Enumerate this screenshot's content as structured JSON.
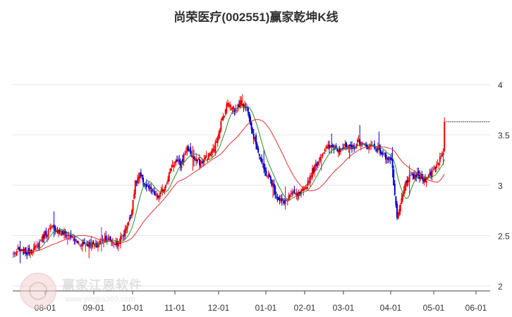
{
  "chart_data": {
    "type": "candlestick",
    "title": "尚荣医疗(002551)赢家乾坤K线",
    "x_ticks": [
      "08-01",
      "09-01",
      "10-01",
      "11-01",
      "12-01",
      "01-01",
      "02-01",
      "03-01",
      "04-01",
      "05-01",
      "06-01"
    ],
    "y_ticks": [
      "2",
      "2.5",
      "3",
      "3.5",
      "4"
    ],
    "ylim": [
      2.0,
      4.2
    ],
    "grid": true,
    "last_close_price": 3.63,
    "colors": {
      "up": "#ee0000",
      "down": "#0000cc",
      "neutral": "#8833aa",
      "ma_short": "#2e8b2e",
      "ma_long": "#e03030",
      "dashline": "#333333"
    },
    "anchors": [
      [
        0,
        2.32
      ],
      [
        4,
        2.35
      ],
      [
        12,
        2.33
      ],
      [
        20,
        2.38
      ],
      [
        28,
        2.52
      ],
      [
        35,
        2.58
      ],
      [
        43,
        2.53
      ],
      [
        50,
        2.5
      ],
      [
        58,
        2.42
      ],
      [
        66,
        2.42
      ],
      [
        74,
        2.4
      ],
      [
        80,
        2.48
      ],
      [
        86,
        2.45
      ],
      [
        92,
        2.42
      ],
      [
        98,
        2.52
      ],
      [
        104,
        2.7
      ],
      [
        108,
        3.02
      ],
      [
        112,
        3.1
      ],
      [
        117,
        3.0
      ],
      [
        122,
        2.95
      ],
      [
        128,
        2.88
      ],
      [
        134,
        2.98
      ],
      [
        140,
        3.18
      ],
      [
        144,
        3.24
      ],
      [
        148,
        3.2
      ],
      [
        154,
        3.38
      ],
      [
        160,
        3.26
      ],
      [
        166,
        3.22
      ],
      [
        172,
        3.28
      ],
      [
        178,
        3.36
      ],
      [
        184,
        3.62
      ],
      [
        190,
        3.82
      ],
      [
        196,
        3.74
      ],
      [
        202,
        3.82
      ],
      [
        208,
        3.75
      ],
      [
        212,
        3.52
      ],
      [
        216,
        3.38
      ],
      [
        222,
        3.15
      ],
      [
        228,
        3.05
      ],
      [
        234,
        2.88
      ],
      [
        240,
        2.82
      ],
      [
        246,
        2.92
      ],
      [
        252,
        2.9
      ],
      [
        258,
        2.95
      ],
      [
        264,
        3.12
      ],
      [
        270,
        3.24
      ],
      [
        276,
        3.36
      ],
      [
        282,
        3.38
      ],
      [
        288,
        3.36
      ],
      [
        294,
        3.38
      ],
      [
        300,
        3.36
      ],
      [
        306,
        3.44
      ],
      [
        312,
        3.38
      ],
      [
        318,
        3.4
      ],
      [
        324,
        3.35
      ],
      [
        330,
        3.28
      ],
      [
        335,
        3.26
      ],
      [
        340,
        2.65
      ],
      [
        344,
        2.85
      ],
      [
        348,
        3.04
      ],
      [
        352,
        3.08
      ],
      [
        358,
        3.1
      ],
      [
        364,
        3.05
      ],
      [
        370,
        3.12
      ],
      [
        376,
        3.22
      ],
      [
        381,
        3.35
      ],
      [
        382,
        3.63
      ]
    ]
  },
  "watermark": {
    "brand": "赢家江恩软件",
    "url": "www.yingjia360.com"
  }
}
